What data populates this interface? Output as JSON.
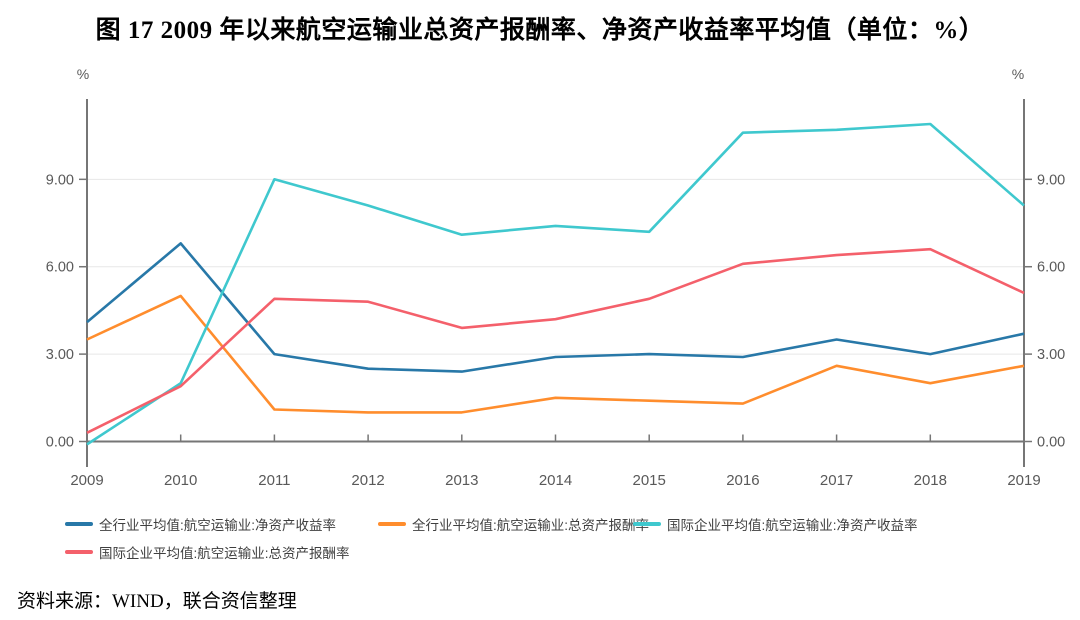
{
  "title": "图 17  2009 年以来航空运输业总资产报酬率、净资产收益率平均值（单位：%）",
  "source": "资料来源：WIND，联合资信整理",
  "chart_data": {
    "type": "line",
    "title": "2009 年以来航空运输业总资产报酬率、净资产收益率平均值",
    "unit_label": "%",
    "x": [
      2009,
      2010,
      2011,
      2012,
      2013,
      2014,
      2015,
      2016,
      2017,
      2018,
      2019
    ],
    "y_ticks": [
      0,
      3,
      6,
      9
    ],
    "y_tick_labels": [
      "0.00",
      "3.00",
      "6.00",
      "9.00"
    ],
    "ylim": [
      0,
      11.7
    ],
    "grid": true,
    "legend_position": "bottom",
    "axis_color": "#767676",
    "grid_color": "#e7e7e7",
    "label_color": "#595959",
    "series": [
      {
        "name": "全行业平均值:航空运输业:净资产收益率",
        "color": "#2878A8",
        "values": [
          4.1,
          6.8,
          3.0,
          2.5,
          2.4,
          2.9,
          3.0,
          2.9,
          3.5,
          3.0,
          3.7
        ]
      },
      {
        "name": "全行业平均值:航空运输业:总资产报酬率",
        "color": "#FF8D2D",
        "values": [
          3.5,
          5.0,
          1.1,
          1.0,
          1.0,
          1.5,
          1.4,
          1.3,
          2.6,
          2.0,
          2.6
        ]
      },
      {
        "name": "国际企业平均值:航空运输业:净资产收益率",
        "color": "#3FC8CE",
        "values": [
          -0.1,
          2.0,
          9.0,
          8.1,
          7.1,
          7.4,
          7.2,
          10.6,
          10.7,
          10.9,
          8.1
        ]
      },
      {
        "name": "国际企业平均值:航空运输业:总资产报酬率",
        "color": "#F4606B",
        "values": [
          0.3,
          1.9,
          4.9,
          4.8,
          3.9,
          4.2,
          4.9,
          6.1,
          6.4,
          6.6,
          5.1
        ]
      }
    ]
  }
}
